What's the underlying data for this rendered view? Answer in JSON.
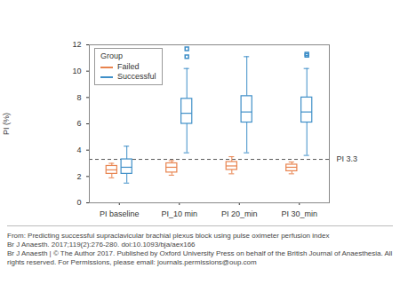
{
  "chart_data": {
    "type": "box",
    "y_label": "PI (%)",
    "categories": [
      "PI baseline",
      "PI_10 min",
      "PI 20_min",
      "PI 30_min"
    ],
    "legend_title": "Group",
    "legend": "top-left",
    "series": [
      {
        "name": "Failed",
        "color": "#e8834e",
        "boxes": [
          {
            "whisker_low": 1.9,
            "q1": 2.2,
            "median": 2.5,
            "q3": 2.8,
            "whisker_high": 3.0,
            "outliers": []
          },
          {
            "whisker_low": 2.1,
            "q1": 2.3,
            "median": 2.7,
            "q3": 3.0,
            "whisker_high": 3.2,
            "outliers": []
          },
          {
            "whisker_low": 2.2,
            "q1": 2.5,
            "median": 2.8,
            "q3": 3.1,
            "whisker_high": 3.5,
            "outliers": []
          },
          {
            "whisker_low": 2.2,
            "q1": 2.4,
            "median": 2.7,
            "q3": 2.9,
            "whisker_high": 3.1,
            "outliers": []
          }
        ]
      },
      {
        "name": "Successful",
        "color": "#3f8fc8",
        "boxes": [
          {
            "whisker_low": 1.5,
            "q1": 2.2,
            "median": 2.7,
            "q3": 3.3,
            "whisker_high": 4.3,
            "outliers": []
          },
          {
            "whisker_low": 3.8,
            "q1": 6.0,
            "median": 6.8,
            "q3": 7.9,
            "whisker_high": 10.2,
            "outliers": [
              11.1,
              11.7
            ]
          },
          {
            "whisker_low": 3.8,
            "q1": 6.1,
            "median": 6.9,
            "q3": 8.1,
            "whisker_high": 11.1,
            "outliers": []
          },
          {
            "whisker_low": 3.6,
            "q1": 6.1,
            "median": 6.9,
            "q3": 8.0,
            "whisker_high": 10.2,
            "outliers": [
              11.2,
              11.3
            ]
          }
        ]
      }
    ],
    "ylim": [
      0,
      12
    ],
    "yticks": [
      0,
      2,
      4,
      6,
      8,
      10,
      12
    ],
    "reference_line": {
      "value": 3.3,
      "label": "PI 3.3"
    },
    "caption": [
      "From: Predicting successful supraclavicular brachial plexus block using pulse oximeter perfusion index",
      "Br J Anaesth. 2017;119(2):276-280. doi:10.1093/bja/aex166",
      "Br J Anaesth | © The Author 2017. Published by Oxford University Press on behalf of the British Journal of Anaesthesia. All rights reserved. For Permissions, please email: journals.permissions@oup.com"
    ]
  }
}
